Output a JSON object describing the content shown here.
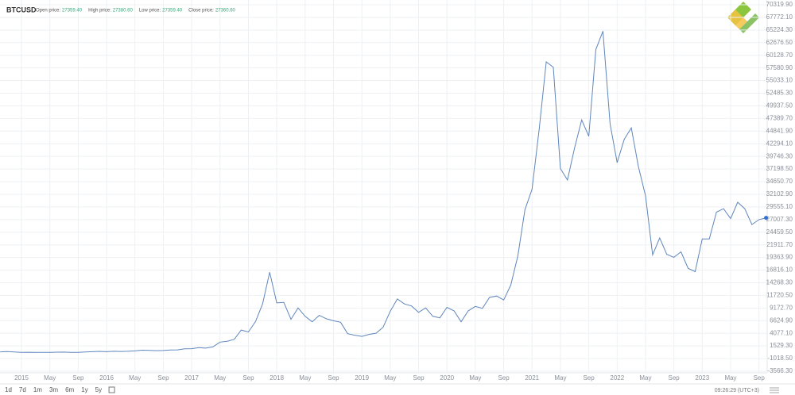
{
  "header": {
    "symbol": "BTCUSD",
    "fields": [
      {
        "label": "Open price:",
        "value": "27359.40"
      },
      {
        "label": "High price:",
        "value": "27380.60"
      },
      {
        "label": "Low price:",
        "value": "27359.40"
      },
      {
        "label": "Close price:",
        "value": "27360.60"
      }
    ]
  },
  "toolbar": {
    "ranges": [
      "1d",
      "7d",
      "1m",
      "3m",
      "6m",
      "1y",
      "5y"
    ],
    "clock": "09:26:29 (UTC+3)"
  },
  "chart_data": {
    "type": "line",
    "color": "#5f86bd",
    "grid": true,
    "x": [
      "2014-10",
      "2014-11",
      "2014-12",
      "2015-01",
      "2015-02",
      "2015-03",
      "2015-04",
      "2015-05",
      "2015-06",
      "2015-07",
      "2015-08",
      "2015-09",
      "2015-10",
      "2015-11",
      "2015-12",
      "2016-01",
      "2016-02",
      "2016-03",
      "2016-04",
      "2016-05",
      "2016-06",
      "2016-07",
      "2016-08",
      "2016-09",
      "2016-10",
      "2016-11",
      "2016-12",
      "2017-01",
      "2017-02",
      "2017-03",
      "2017-04",
      "2017-05",
      "2017-06",
      "2017-07",
      "2017-08",
      "2017-09",
      "2017-10",
      "2017-11",
      "2017-12",
      "2018-01",
      "2018-02",
      "2018-03",
      "2018-04",
      "2018-05",
      "2018-06",
      "2018-07",
      "2018-08",
      "2018-09",
      "2018-10",
      "2018-11",
      "2018-12",
      "2019-01",
      "2019-02",
      "2019-03",
      "2019-04",
      "2019-05",
      "2019-06",
      "2019-07",
      "2019-08",
      "2019-09",
      "2019-10",
      "2019-11",
      "2019-12",
      "2020-01",
      "2020-02",
      "2020-03",
      "2020-04",
      "2020-05",
      "2020-06",
      "2020-07",
      "2020-08",
      "2020-09",
      "2020-10",
      "2020-11",
      "2020-12",
      "2021-01",
      "2021-02",
      "2021-03",
      "2021-04",
      "2021-05",
      "2021-06",
      "2021-07",
      "2021-08",
      "2021-09",
      "2021-10",
      "2021-11",
      "2021-12",
      "2022-01",
      "2022-02",
      "2022-03",
      "2022-04",
      "2022-05",
      "2022-06",
      "2022-07",
      "2022-08",
      "2022-09",
      "2022-10",
      "2022-11",
      "2022-12",
      "2023-01",
      "2023-02",
      "2023-03",
      "2023-04",
      "2023-05",
      "2023-06",
      "2023-07",
      "2023-08",
      "2023-09",
      "2023-10"
    ],
    "series": [
      {
        "name": "BTCUSD",
        "values": [
          330,
          380,
          320,
          220,
          250,
          245,
          235,
          230,
          265,
          285,
          230,
          235,
          315,
          375,
          430,
          370,
          440,
          415,
          450,
          530,
          670,
          625,
          575,
          610,
          700,
          740,
          960,
          970,
          1190,
          1080,
          1350,
          2300,
          2480,
          2870,
          4730,
          4340,
          6450,
          10000,
          16400,
          10200,
          10300,
          6900,
          9200,
          7500,
          6400,
          7700,
          7000,
          6600,
          6300,
          4000,
          3700,
          3450,
          3850,
          4100,
          5300,
          8500,
          11000,
          10000,
          9600,
          8300,
          9200,
          7500,
          7200,
          9300,
          8600,
          6400,
          8600,
          9500,
          9100,
          11300,
          11600,
          10800,
          13800,
          19700,
          29000,
          33100,
          45200,
          58800,
          57700,
          37300,
          35000,
          41500,
          47100,
          43800,
          61300,
          65000,
          46300,
          38500,
          43200,
          45500,
          37700,
          31800,
          19900,
          23300,
          20000,
          19400,
          20500,
          17200,
          16500,
          23100,
          23100,
          28500,
          29200,
          27200,
          30500,
          29200,
          26000,
          27000,
          27360
        ]
      }
    ],
    "xticks": [
      {
        "value": "2015-01",
        "label": "2015"
      },
      {
        "value": "2015-05",
        "label": "May"
      },
      {
        "value": "2015-09",
        "label": "Sep"
      },
      {
        "value": "2016-01",
        "label": "2016"
      },
      {
        "value": "2016-05",
        "label": "May"
      },
      {
        "value": "2016-09",
        "label": "Sep"
      },
      {
        "value": "2017-01",
        "label": "2017"
      },
      {
        "value": "2017-05",
        "label": "May"
      },
      {
        "value": "2017-09",
        "label": "Sep"
      },
      {
        "value": "2018-01",
        "label": "2018"
      },
      {
        "value": "2018-05",
        "label": "May"
      },
      {
        "value": "2018-09",
        "label": "Sep"
      },
      {
        "value": "2019-01",
        "label": "2019"
      },
      {
        "value": "2019-05",
        "label": "May"
      },
      {
        "value": "2019-09",
        "label": "Sep"
      },
      {
        "value": "2020-01",
        "label": "2020"
      },
      {
        "value": "2020-05",
        "label": "May"
      },
      {
        "value": "2020-09",
        "label": "Sep"
      },
      {
        "value": "2021-01",
        "label": "2021"
      },
      {
        "value": "2021-05",
        "label": "May"
      },
      {
        "value": "2021-09",
        "label": "Sep"
      },
      {
        "value": "2022-01",
        "label": "2022"
      },
      {
        "value": "2022-05",
        "label": "May"
      },
      {
        "value": "2022-09",
        "label": "Sep"
      },
      {
        "value": "2023-01",
        "label": "2023"
      },
      {
        "value": "2023-05",
        "label": "May"
      },
      {
        "value": "2023-09",
        "label": "Sep"
      }
    ],
    "ylim": [
      -3566.3,
      70319.9
    ],
    "yticks": [
      {
        "value": -3566.3,
        "label": "-3566.30"
      },
      {
        "value": -1018.5,
        "label": "-1018.50"
      },
      {
        "value": 1529.3,
        "label": "1529.30"
      },
      {
        "value": 4077.1,
        "label": "4077.10"
      },
      {
        "value": 6624.9,
        "label": "6624.90"
      },
      {
        "value": 9172.7,
        "label": "9172.70"
      },
      {
        "value": 11720.5,
        "label": "11720.50"
      },
      {
        "value": 14268.3,
        "label": "14268.30"
      },
      {
        "value": 16816.1,
        "label": "16816.10"
      },
      {
        "value": 19363.9,
        "label": "19363.90"
      },
      {
        "value": 21911.7,
        "label": "21911.70"
      },
      {
        "value": 24459.5,
        "label": "24459.50"
      },
      {
        "value": 27007.3,
        "label": "27007.30"
      },
      {
        "value": 29555.1,
        "label": "29555.10"
      },
      {
        "value": 32102.9,
        "label": "32102.90"
      },
      {
        "value": 34650.7,
        "label": "34650.70"
      },
      {
        "value": 37198.5,
        "label": "37198.50"
      },
      {
        "value": 39746.3,
        "label": "39746.30"
      },
      {
        "value": 42294.1,
        "label": "42294.10"
      },
      {
        "value": 44841.9,
        "label": "44841.90"
      },
      {
        "value": 47389.7,
        "label": "47389.70"
      },
      {
        "value": 49937.5,
        "label": "49937.50"
      },
      {
        "value": 52485.3,
        "label": "52485.30"
      },
      {
        "value": 55033.1,
        "label": "55033.10"
      },
      {
        "value": 57580.9,
        "label": "57580.90"
      },
      {
        "value": 60128.7,
        "label": "60128.70"
      },
      {
        "value": 62676.5,
        "label": "62676.50"
      },
      {
        "value": 65224.3,
        "label": "65224.30"
      },
      {
        "value": 67772.1,
        "label": "67772.10"
      },
      {
        "value": 70319.9,
        "label": "70319.90"
      }
    ]
  }
}
